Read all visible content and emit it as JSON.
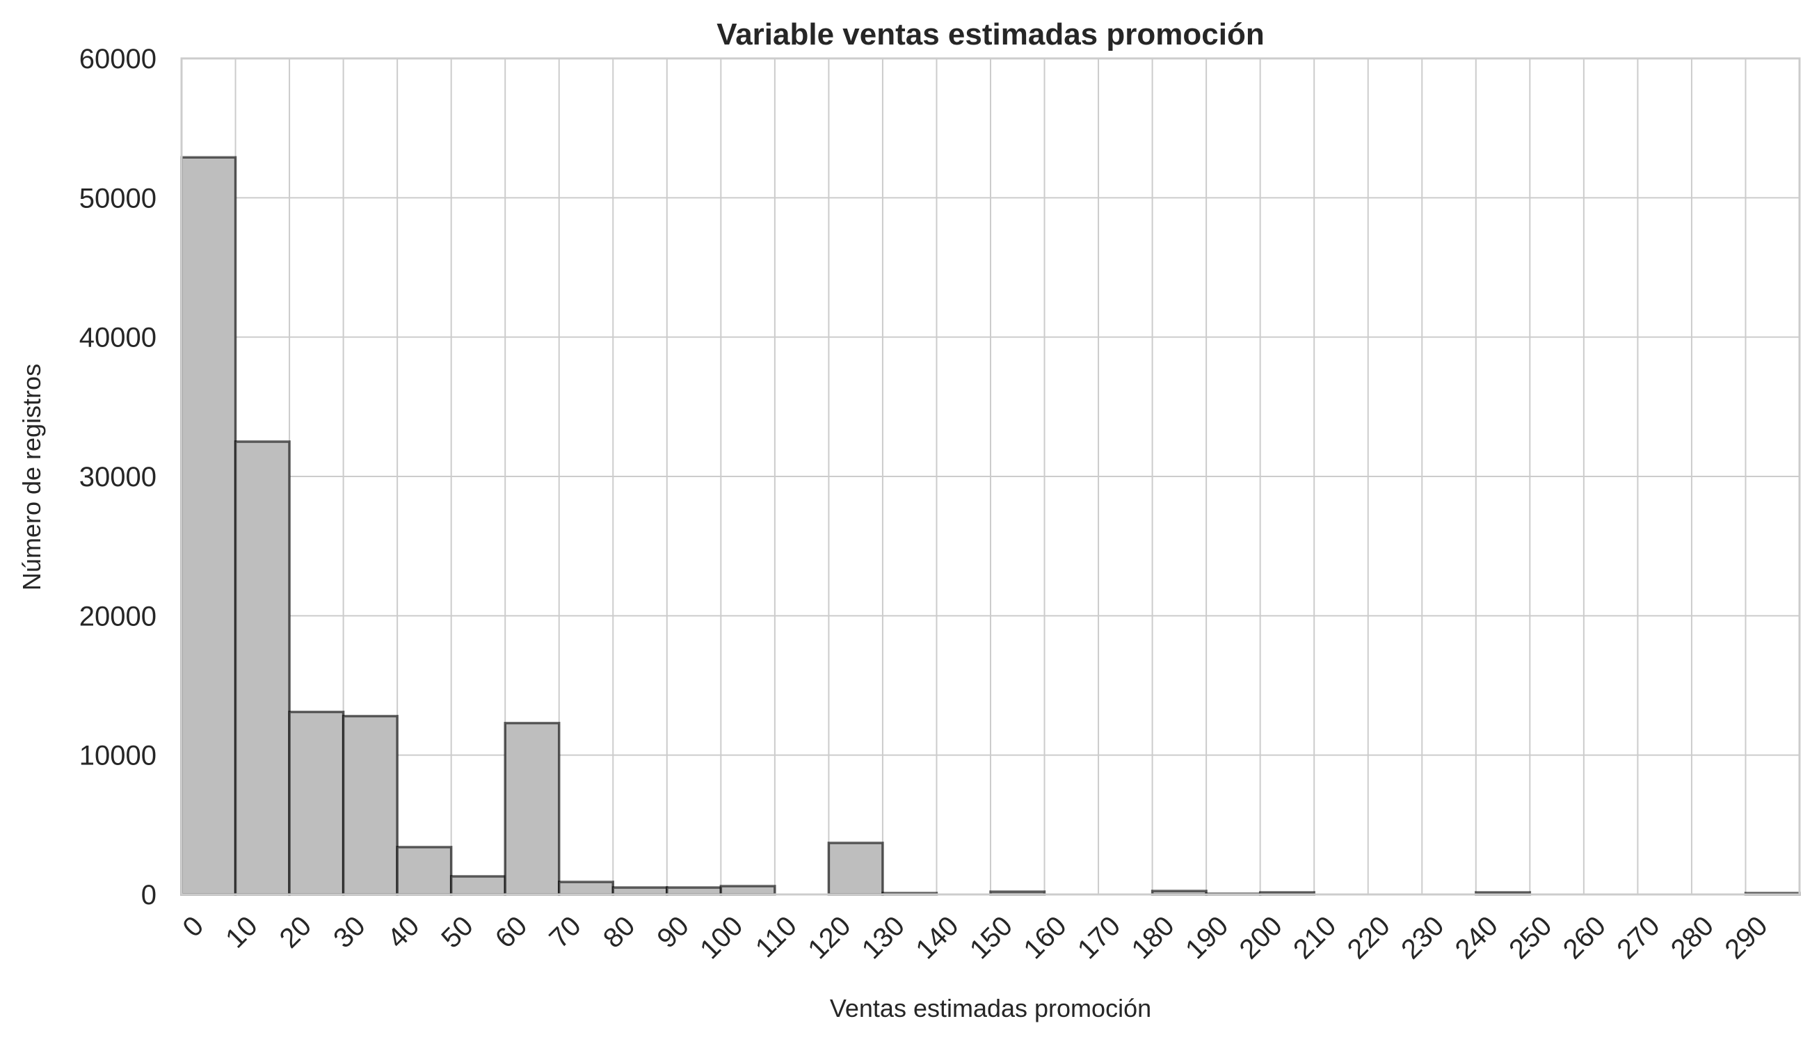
{
  "chart_data": {
    "type": "bar",
    "title": "Variable ventas estimadas promoción",
    "xlabel": "Ventas estimadas promoción",
    "ylabel": "Número de registros",
    "xlim": [
      0,
      300
    ],
    "ylim": [
      0,
      60000
    ],
    "bin_width": 10,
    "x_ticks": [
      0,
      10,
      20,
      30,
      40,
      50,
      60,
      70,
      80,
      90,
      100,
      110,
      120,
      130,
      140,
      150,
      160,
      170,
      180,
      190,
      200,
      210,
      220,
      230,
      240,
      250,
      260,
      270,
      280,
      290
    ],
    "y_ticks": [
      0,
      10000,
      20000,
      30000,
      40000,
      50000,
      60000
    ],
    "bins": [
      {
        "start": 0,
        "end": 10,
        "value": 52900
      },
      {
        "start": 10,
        "end": 20,
        "value": 32500
      },
      {
        "start": 20,
        "end": 30,
        "value": 13100
      },
      {
        "start": 30,
        "end": 40,
        "value": 12800
      },
      {
        "start": 40,
        "end": 50,
        "value": 3400
      },
      {
        "start": 50,
        "end": 60,
        "value": 1300
      },
      {
        "start": 60,
        "end": 70,
        "value": 12300
      },
      {
        "start": 70,
        "end": 80,
        "value": 900
      },
      {
        "start": 80,
        "end": 90,
        "value": 500
      },
      {
        "start": 90,
        "end": 100,
        "value": 500
      },
      {
        "start": 100,
        "end": 110,
        "value": 600
      },
      {
        "start": 110,
        "end": 120,
        "value": 0
      },
      {
        "start": 120,
        "end": 130,
        "value": 3700
      },
      {
        "start": 130,
        "end": 140,
        "value": 100
      },
      {
        "start": 140,
        "end": 150,
        "value": 0
      },
      {
        "start": 150,
        "end": 160,
        "value": 200
      },
      {
        "start": 160,
        "end": 170,
        "value": 0
      },
      {
        "start": 170,
        "end": 180,
        "value": 0
      },
      {
        "start": 180,
        "end": 190,
        "value": 250
      },
      {
        "start": 190,
        "end": 200,
        "value": 50
      },
      {
        "start": 200,
        "end": 210,
        "value": 150
      },
      {
        "start": 210,
        "end": 220,
        "value": 0
      },
      {
        "start": 220,
        "end": 230,
        "value": 0
      },
      {
        "start": 230,
        "end": 240,
        "value": 0
      },
      {
        "start": 240,
        "end": 250,
        "value": 150
      },
      {
        "start": 250,
        "end": 260,
        "value": 0
      },
      {
        "start": 260,
        "end": 270,
        "value": 0
      },
      {
        "start": 270,
        "end": 280,
        "value": 0
      },
      {
        "start": 280,
        "end": 290,
        "value": 0
      },
      {
        "start": 290,
        "end": 300,
        "value": 100
      }
    ],
    "bar_color": "#bebebe",
    "edge_color": "#000000",
    "grid": true,
    "legend": "none"
  }
}
